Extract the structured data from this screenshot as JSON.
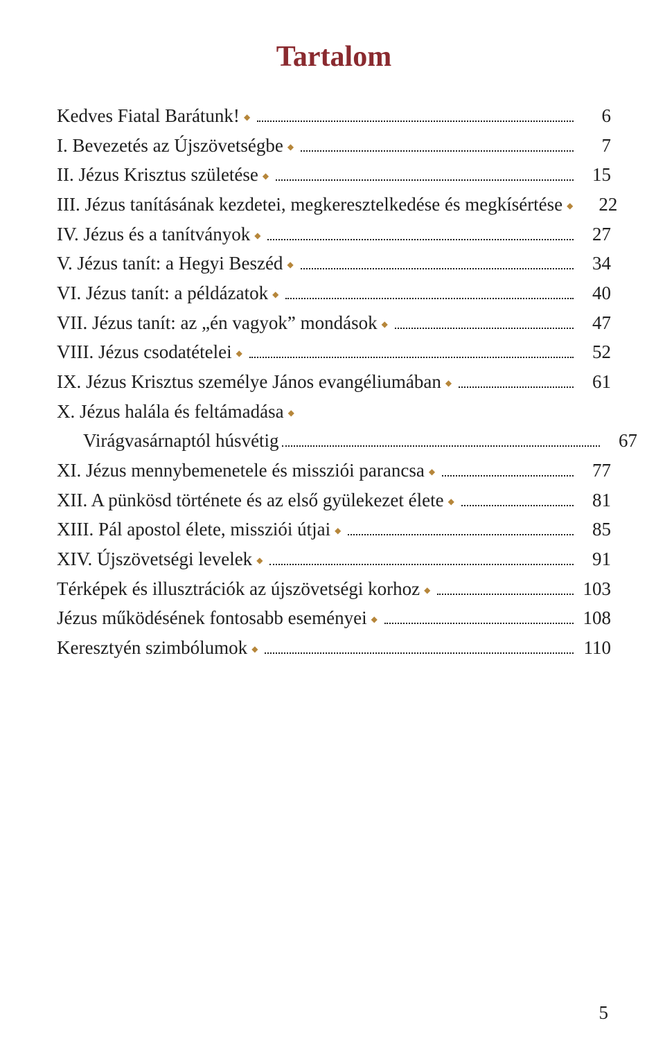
{
  "page": {
    "title": "Tartalom",
    "title_color": "#8a2a2f",
    "bullet_color": "#b6863a",
    "text_color": "#1e1e1e",
    "background_color": "#ffffff",
    "page_number": "5",
    "entries": [
      {
        "label": "Kedves Fiatal Barátunk!",
        "page": "6",
        "indent": false
      },
      {
        "label": "I. Bevezetés az Újszövetségbe",
        "page": "7",
        "indent": false
      },
      {
        "label": "II. Jézus Krisztus születése",
        "page": "15",
        "indent": false
      },
      {
        "label": "III. Jézus tanításának kezdetei, megkeresztelkedése és megkísértése",
        "page": "22",
        "indent": false
      },
      {
        "label": "IV. Jézus és a tanítványok",
        "page": "27",
        "indent": false
      },
      {
        "label": "V. Jézus tanít: a Hegyi Beszéd",
        "page": "34",
        "indent": false
      },
      {
        "label": "VI. Jézus tanít: a példázatok",
        "page": "40",
        "indent": false
      },
      {
        "label": "VII. Jézus tanít: az „én vagyok” mondások",
        "page": "47",
        "indent": false
      },
      {
        "label": "VIII. Jézus csodatételei",
        "page": "52",
        "indent": false
      },
      {
        "label": "IX. Jézus Krisztus személye János evangéliumában",
        "page": "61",
        "indent": false
      },
      {
        "label": "X. Jézus halála és feltámadása",
        "page": "",
        "indent": false,
        "no_leader": true
      },
      {
        "label": "Virágvasárnaptól húsvétig",
        "page": "67",
        "indent": true,
        "no_bullet": true
      },
      {
        "label": "XI. Jézus mennybemenetele és missziói parancsa",
        "page": "77",
        "indent": false
      },
      {
        "label": "XII. A pünkösd története és az első gyülekezet élete",
        "page": "81",
        "indent": false
      },
      {
        "label": "XIII. Pál apostol élete, missziói útjai",
        "page": "85",
        "indent": false
      },
      {
        "label": "XIV. Újszövetségi levelek",
        "page": "91",
        "indent": false
      },
      {
        "label": "Térképek és illusztrációk az újszövetségi korhoz",
        "page": "103",
        "indent": false
      },
      {
        "label": "Jézus működésének fontosabb eseményei",
        "page": "108",
        "indent": false
      },
      {
        "label": "Keresztyén szimbólumok",
        "page": "110",
        "indent": false
      }
    ]
  }
}
